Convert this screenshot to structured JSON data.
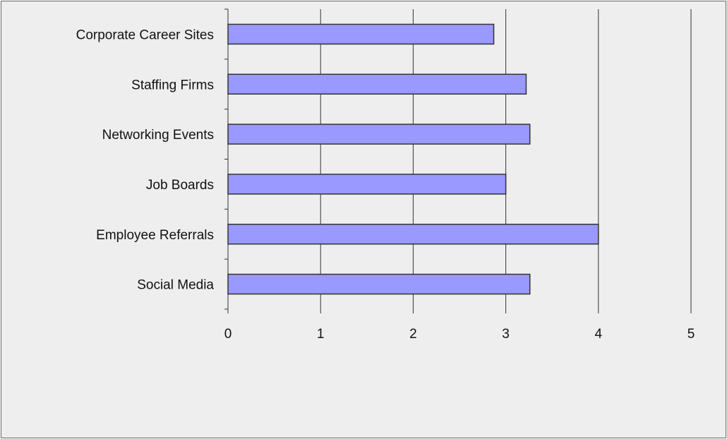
{
  "chart_data": {
    "type": "bar",
    "orientation": "horizontal",
    "title": "",
    "xlabel": "",
    "ylabel": "",
    "categories": [
      "Corporate Career Sites",
      "Staffing Firms",
      "Networking Events",
      "Job Boards",
      "Employee Referrals",
      "Social Media"
    ],
    "values": [
      2.87,
      3.22,
      3.26,
      3.0,
      4.0,
      3.26
    ],
    "xlim": [
      0,
      5
    ],
    "x_ticks": [
      "0",
      "1",
      "2",
      "3",
      "4",
      "5"
    ],
    "grid": "vertical",
    "legend": "none",
    "colors": {
      "bar_fill": "#9999ff",
      "bar_stroke": "#333333",
      "background": "#eeeeee",
      "grid": "#333333"
    }
  }
}
